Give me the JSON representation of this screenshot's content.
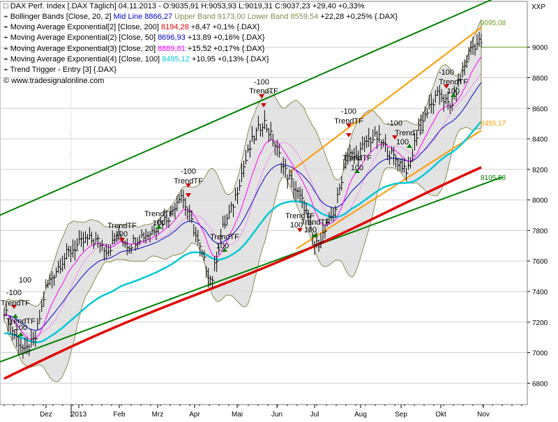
{
  "legend": {
    "title": "DAX Perf. Index [.DAX  Täglich] 04.11.2013 - O:9035,91 H:9053,93 L:9019,31 C:9037,23 +29,40 +0,33%",
    "bb_prefix": "Bollinger Bands [Close, 20, 2]",
    "bb_mid": "Mid Line 8866,27",
    "bb_upper": "Upper Band 9173,00",
    "bb_lower": "Lower Band 8559,54",
    "bb_change": "+22,28 +0,25% {.DAX}",
    "ema200_prefix": "Moving Average Exponential[2] [Close, 200]",
    "ema200_value": "8194,28",
    "ema200_change": "+8,47 +0,1% {.DAX}",
    "ema50_prefix": "Moving Average Exponential(2) [Close, 50]",
    "ema50_value": "8696,93",
    "ema50_change": "+13,89 +0,16% {.DAX}",
    "ema20_prefix": "Moving Average Exponential(3) [Close, 20]",
    "ema20_value": "8889,81",
    "ema20_change": "+15,52 +0,17% {.DAX}",
    "ema100_prefix": "Moving Average Exponential(4) [Close, 100]",
    "ema100_value": "8495,12",
    "ema100_change": "+10,95 +0,13% {.DAX}",
    "trigger": "Trend Trigger - Entry [3] {.DAX}",
    "copyright": "© www.tradesignalonline.com"
  },
  "colors": {
    "background": "#ffffff",
    "price_bars": "#000000",
    "bollinger_fill": "#d9d9d9",
    "bollinger_edge": "#8a8a50",
    "ema20": "#ff00ff",
    "ema50": "#0000c8",
    "ema100": "#00c8d8",
    "ema200": "#e00000",
    "long_channel": "#008000",
    "short_channel": "#ff9900",
    "signal_up": "#008000",
    "signal_down": "#cc0000"
  },
  "chart_data": {
    "type": "line",
    "y_axis_label": "XXP",
    "ylim": [
      6660,
      9300
    ],
    "y_ticks": [
      6800,
      7000,
      7200,
      7400,
      7600,
      7800,
      8000,
      8200,
      8400,
      8600,
      8800,
      9000
    ],
    "x_ticks": [
      "Dez",
      "2013",
      "Feb",
      "Mrz",
      "Apr",
      "Mai",
      "Jun",
      "Jul",
      "Aug",
      "Sep",
      "Okt",
      "Nov"
    ],
    "grid": true,
    "series": [
      {
        "name": "DAX Perf. Index",
        "values": [
          7280,
          7120,
          7000,
          7090,
          7420,
          7540,
          7640,
          7700,
          7740,
          7730,
          7670,
          7770,
          7700,
          7760,
          7780,
          7850,
          7900,
          8050,
          7870,
          7650,
          7460,
          7800,
          7950,
          8200,
          8400,
          8520,
          8380,
          8200,
          8080,
          7950,
          7690,
          7800,
          7960,
          8300,
          8280,
          8390,
          8410,
          8320,
          8250,
          8190,
          8500,
          8600,
          8700,
          8600,
          8800,
          9000,
          9037
        ]
      }
    ],
    "markers": {
      "ema200_value": "8194,28",
      "long_channel_value": "8105,58",
      "short_channel_value": "8455,17",
      "last_price": "9095,08"
    },
    "signals": [
      {
        "label": "-100",
        "value": -100
      },
      {
        "label": "TrendTF",
        "value": 0
      },
      {
        "label": "100",
        "value": 100
      }
    ]
  }
}
